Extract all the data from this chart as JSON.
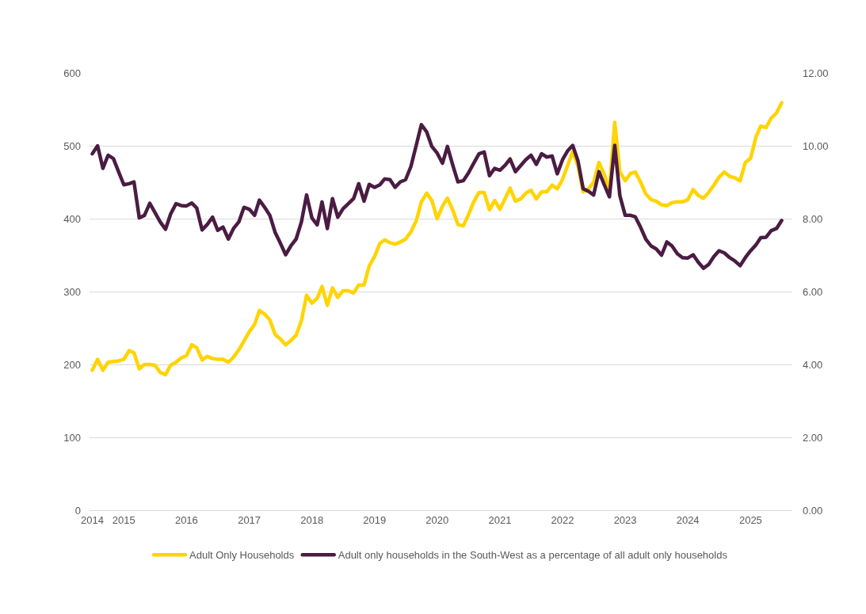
{
  "chart_data": {
    "type": "line",
    "x": [
      "2014-07",
      "2014-08",
      "2014-09",
      "2014-10",
      "2014-11",
      "2014-12",
      "2015-01",
      "2015-02",
      "2015-03",
      "2015-04",
      "2015-05",
      "2015-06",
      "2015-07",
      "2015-08",
      "2015-09",
      "2015-10",
      "2015-11",
      "2015-12",
      "2016-01",
      "2016-02",
      "2016-03",
      "2016-04",
      "2016-05",
      "2016-06",
      "2016-07",
      "2016-08",
      "2016-09",
      "2016-10",
      "2016-11",
      "2016-12",
      "2017-01",
      "2017-02",
      "2017-03",
      "2017-04",
      "2017-05",
      "2017-06",
      "2017-07",
      "2017-08",
      "2017-09",
      "2017-10",
      "2017-11",
      "2017-12",
      "2018-01",
      "2018-02",
      "2018-03",
      "2018-04",
      "2018-05",
      "2018-06",
      "2018-07",
      "2018-08",
      "2018-09",
      "2018-10",
      "2018-11",
      "2018-12",
      "2019-01",
      "2019-02",
      "2019-03",
      "2019-04",
      "2019-05",
      "2019-06",
      "2019-07",
      "2019-08",
      "2019-09",
      "2019-10",
      "2019-11",
      "2019-12",
      "2020-01",
      "2020-02",
      "2020-03",
      "2020-04",
      "2020-05",
      "2020-06",
      "2020-07",
      "2020-08",
      "2020-09",
      "2020-10",
      "2020-11",
      "2020-12",
      "2021-01",
      "2021-02",
      "2021-03",
      "2021-04",
      "2021-05",
      "2021-06",
      "2021-07",
      "2021-08",
      "2021-09",
      "2021-10",
      "2021-11",
      "2021-12",
      "2022-01",
      "2022-02",
      "2022-03",
      "2022-04",
      "2022-05",
      "2022-06",
      "2022-07",
      "2022-08",
      "2022-09",
      "2022-10",
      "2022-11",
      "2022-12",
      "2023-01",
      "2023-02",
      "2023-03",
      "2023-04",
      "2023-05",
      "2023-06",
      "2023-07",
      "2023-08",
      "2023-09",
      "2023-10",
      "2023-11",
      "2023-12",
      "2024-01",
      "2024-02",
      "2024-03",
      "2024-04",
      "2024-05",
      "2024-06",
      "2024-07",
      "2024-08",
      "2024-09",
      "2024-10",
      "2024-11",
      "2024-12",
      "2025-01",
      "2025-02",
      "2025-03",
      "2025-04",
      "2025-05",
      "2025-06",
      "2025-07"
    ],
    "series": [
      {
        "name": "Adult Only Households",
        "color": "#ffd400",
        "values": [
          192,
          207,
          192,
          203,
          204,
          205,
          207,
          219,
          216,
          194,
          200,
          200,
          199,
          189,
          186,
          199,
          203,
          209,
          212,
          227,
          223,
          206,
          211,
          208,
          207,
          207,
          203,
          210,
          220,
          232,
          245,
          255,
          274,
          269,
          261,
          241,
          235,
          227,
          233,
          240,
          260,
          295,
          284,
          291,
          307,
          281,
          305,
          292,
          301,
          301,
          298,
          309,
          309,
          335,
          348,
          366,
          371,
          367,
          365,
          368,
          372,
          382,
          397,
          423,
          435,
          425,
          400,
          417,
          428,
          412,
          392,
          390,
          405,
          423,
          436,
          436,
          412,
          425,
          413,
          428,
          442,
          424,
          427,
          435,
          439,
          427,
          437,
          437,
          446,
          441,
          454,
          474,
          492,
          472,
          437,
          441,
          450,
          477,
          461,
          439,
          532,
          464,
          452,
          462,
          464,
          450,
          434,
          426,
          424,
          419,
          418,
          422,
          423,
          423,
          426,
          440,
          432,
          428,
          436,
          446,
          457,
          464,
          458,
          456,
          452,
          477,
          483,
          512,
          527,
          525,
          538,
          545,
          559
        ]
      },
      {
        "name": "Adult only households in the South-West as a percentage of all adult only households",
        "color": "#4b1c43",
        "axis": "y2",
        "values": [
          9.78,
          10.0,
          9.38,
          9.74,
          9.65,
          9.29,
          8.93,
          8.96,
          9.01,
          8.02,
          8.09,
          8.42,
          8.17,
          7.91,
          7.71,
          8.13,
          8.41,
          8.36,
          8.35,
          8.43,
          8.29,
          7.69,
          7.84,
          8.04,
          7.68,
          7.77,
          7.44,
          7.73,
          7.91,
          8.31,
          8.26,
          8.09,
          8.51,
          8.31,
          8.09,
          7.62,
          7.33,
          7.01,
          7.26,
          7.44,
          7.91,
          8.65,
          8.02,
          7.83,
          8.46,
          7.73,
          8.55,
          8.04,
          8.27,
          8.41,
          8.55,
          8.96,
          8.48,
          8.94,
          8.86,
          8.93,
          9.09,
          9.07,
          8.86,
          9.01,
          9.07,
          9.43,
          10.01,
          10.58,
          10.38,
          9.98,
          9.8,
          9.52,
          9.98,
          9.47,
          9.01,
          9.04,
          9.25,
          9.52,
          9.78,
          9.83,
          9.18,
          9.38,
          9.33,
          9.47,
          9.64,
          9.29,
          9.45,
          9.62,
          9.74,
          9.49,
          9.78,
          9.69,
          9.72,
          9.23,
          9.62,
          9.87,
          10.01,
          9.58,
          8.82,
          8.75,
          8.65,
          9.29,
          8.93,
          8.6,
          10.01,
          8.63,
          8.09,
          8.09,
          8.05,
          7.76,
          7.44,
          7.25,
          7.17,
          7.0,
          7.36,
          7.25,
          7.04,
          6.93,
          6.92,
          7.01,
          6.81,
          6.64,
          6.74,
          6.96,
          7.12,
          7.06,
          6.93,
          6.84,
          6.71,
          6.93,
          7.12,
          7.28,
          7.48,
          7.49,
          7.67,
          7.73,
          7.95
        ]
      }
    ],
    "xlim": [
      "2014-06-15",
      "2025-09-01"
    ],
    "xticks": [
      {
        "value": "2014-07",
        "label": "2014"
      },
      "2015",
      "2016",
      "2017",
      "2018",
      "2019",
      "2020",
      "2021",
      "2022",
      "2023",
      "2024",
      "2025"
    ],
    "ylim": [
      0,
      600
    ],
    "yticks": [
      0,
      100,
      200,
      300,
      400,
      500,
      600
    ],
    "y2lim": [
      0,
      12
    ],
    "y2ticks": [
      {
        "value": 0,
        "label": "0.00"
      },
      {
        "value": 2,
        "label": "2.00"
      },
      {
        "value": 4,
        "label": "4.00"
      },
      {
        "value": 6,
        "label": "6.00"
      },
      {
        "value": 8,
        "label": "8.00"
      },
      {
        "value": 10,
        "label": "10.00"
      },
      {
        "value": 12,
        "label": "12.00"
      }
    ],
    "grid": "y",
    "legend": "bottom"
  }
}
